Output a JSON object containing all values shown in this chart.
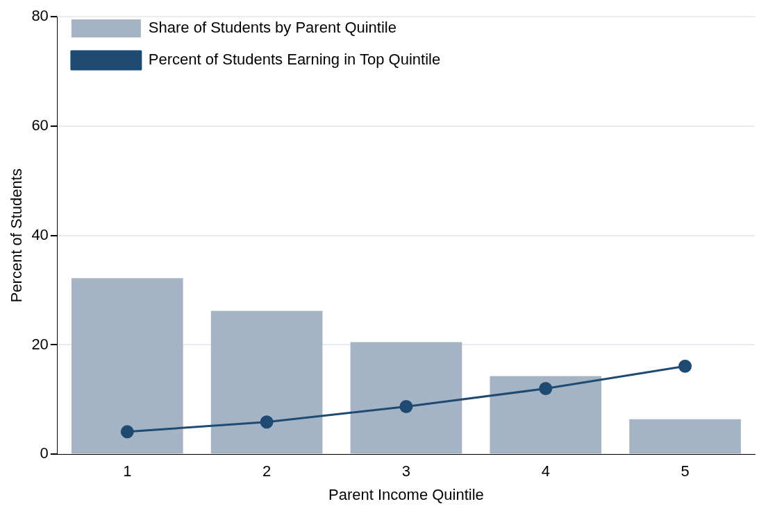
{
  "chart_data": {
    "type": "bar",
    "xlabel": "Parent Income Quintile",
    "ylabel": "Percent of Students",
    "categories": [
      "1",
      "2",
      "3",
      "4",
      "5"
    ],
    "series": [
      {
        "name": "Share of Students by Parent Quintile",
        "color": "#a5b4c4",
        "values": [
          32.2,
          26.2,
          20.5,
          14.3,
          6.4
        ]
      },
      {
        "name": "Percent of Students Earning in Top Quintile",
        "type": "line",
        "color": "#1f4a72",
        "values": [
          4.1,
          5.9,
          8.7,
          12.0,
          16.1
        ]
      }
    ],
    "ylim": [
      0,
      80
    ],
    "yticks": [
      0,
      20,
      40,
      60,
      80
    ],
    "grid": "y",
    "legend": "top left",
    "marker": "circle",
    "line_style": "solid"
  }
}
